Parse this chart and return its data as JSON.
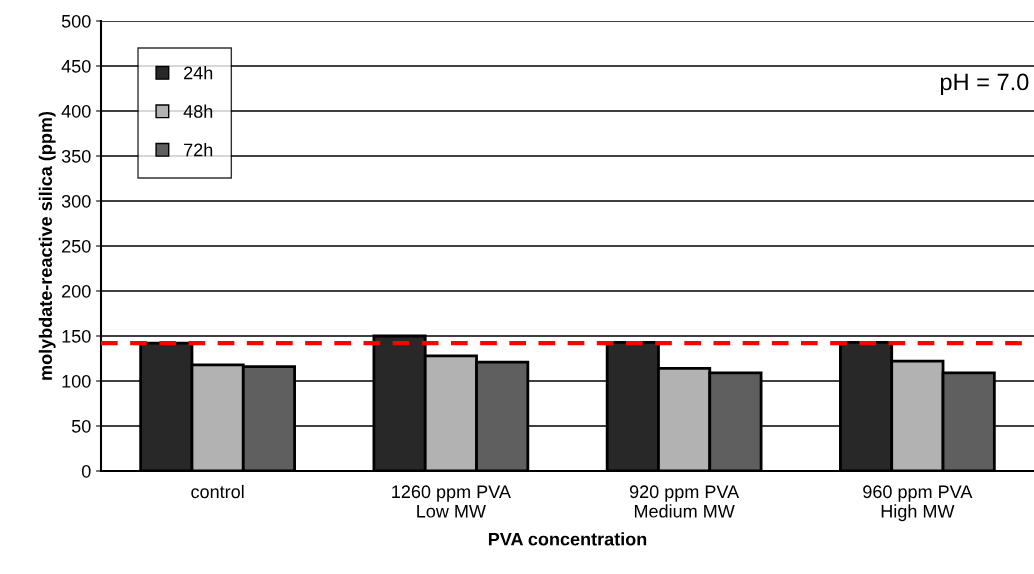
{
  "chart_data": {
    "type": "bar",
    "xlabel": "PVA concentration",
    "ylabel": "molybdate-reactive silica (ppm)",
    "categories": [
      "control",
      "1260 ppm PVA\nLow MW",
      "920 ppm PVA\nMedium MW",
      "960 ppm PVA\nHigh MW"
    ],
    "series": [
      {
        "name": "24h",
        "color": "#282828",
        "values": [
          142,
          150,
          143,
          143
        ]
      },
      {
        "name": "48h",
        "color": "#b2b2b2",
        "values": [
          118,
          128,
          114,
          122
        ]
      },
      {
        "name": "72h",
        "color": "#5f5f5f",
        "values": [
          116,
          121,
          109,
          109
        ]
      }
    ],
    "ylim": [
      0,
      500
    ],
    "yticks": [
      0,
      50,
      100,
      150,
      200,
      250,
      300,
      350,
      400,
      450,
      500
    ],
    "grid": "y",
    "legend": "top left",
    "ref_lines": [
      {
        "axis": "y",
        "value": 142,
        "color": "#ff0000",
        "line_style": "dashed"
      }
    ],
    "annotations": [
      "pH = 7.0"
    ]
  }
}
